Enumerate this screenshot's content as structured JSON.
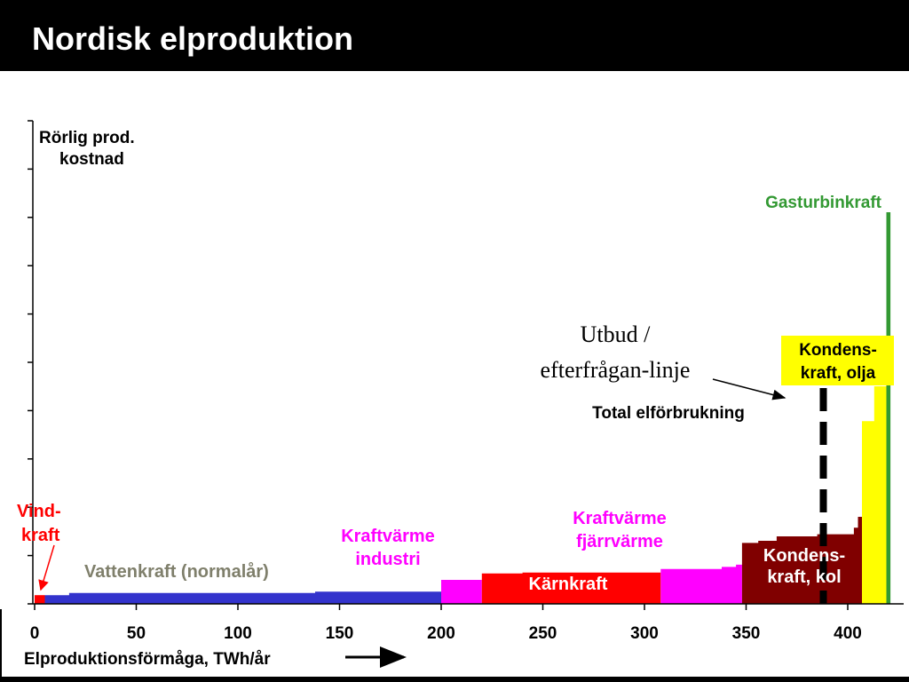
{
  "slide": {
    "title": "Nordisk elproduktion"
  },
  "chart_data": {
    "type": "area",
    "title": "",
    "ylabel": "Rörlig prod. kostnad",
    "xlabel": "Elproduktionsförmåga, TWh/år",
    "xlim": [
      0,
      420
    ],
    "ylim": [
      0,
      10
    ],
    "grid": false,
    "x_ticks": [
      0,
      50,
      100,
      150,
      200,
      250,
      300,
      350,
      400
    ],
    "segments": [
      {
        "name": "Vind-kraft",
        "color": "#ff0000",
        "steps": [
          [
            0,
            0.2
          ],
          [
            5,
            0.2
          ]
        ]
      },
      {
        "name": "Vattenkraft (normalår)",
        "color": "#3333cc",
        "steps": [
          [
            5,
            0.2
          ],
          [
            17,
            0.25
          ],
          [
            100,
            0.25
          ],
          [
            138,
            0.28
          ],
          [
            200,
            0.3
          ]
        ]
      },
      {
        "name": "Kraftvärme industri",
        "color": "#ff00ff",
        "steps": [
          [
            200,
            0.55
          ],
          [
            220,
            0.55
          ]
        ]
      },
      {
        "name": "Kärnkraft",
        "color": "#ff0000",
        "steps": [
          [
            220,
            0.7
          ],
          [
            240,
            0.72
          ],
          [
            275,
            0.72
          ],
          [
            308,
            0.72
          ]
        ]
      },
      {
        "name": "Kraftvärme fjärrvärme",
        "color": "#ff00ff",
        "steps": [
          [
            308,
            0.8
          ],
          [
            325,
            0.8
          ],
          [
            338,
            0.85
          ],
          [
            345,
            0.9
          ],
          [
            348,
            0.9
          ]
        ]
      },
      {
        "name": "Kondens-kraft, kol",
        "color": "#800000",
        "steps": [
          [
            348,
            1.4
          ],
          [
            356,
            1.45
          ],
          [
            365,
            1.55
          ],
          [
            385,
            1.6
          ],
          [
            403,
            1.75
          ],
          [
            405,
            2.0
          ],
          [
            407,
            2.0
          ]
        ]
      },
      {
        "name": "Kondens-kraft, olja",
        "color": "#ffff00",
        "steps": [
          [
            407,
            4.2
          ],
          [
            412,
            4.2
          ],
          [
            413,
            5.0
          ],
          [
            419,
            5.0
          ]
        ]
      },
      {
        "name": "Gasturbinkraft",
        "color": "#339933",
        "steps": [
          [
            419,
            9.0
          ],
          [
            421,
            9.0
          ]
        ]
      }
    ],
    "demand_line": {
      "name": "Total elförbrukning",
      "x": 388,
      "color": "#000000"
    },
    "annotations": [
      {
        "text_lines": [
          "Utbud /",
          "efterfrågan-linje"
        ],
        "arrow_to_x": 388
      }
    ],
    "labels": {
      "y_label_line1": "Rörlig prod.",
      "y_label_line2": "kostnad",
      "wind_line1": "Vind-",
      "wind_line2": "kraft",
      "hydro": "Vattenkraft (normalår)",
      "chp_industry_line1": "Kraftvärme",
      "chp_industry_line2": "industri",
      "chp_district_line1": "Kraftvärme",
      "chp_district_line2": "fjärrvärme",
      "nuclear": "Kärnkraft",
      "coal_line1": "Kondens-",
      "coal_line2": "kraft, kol",
      "oil_line1": "Kondens-",
      "oil_line2": "kraft, olja",
      "gas": "Gasturbinkraft",
      "demand": "Total elförbrukning",
      "supply_demand_line1": "Utbud /",
      "supply_demand_line2": "efterfrågan-linje",
      "xlabel": "Elproduktionsförmåga, TWh/år"
    },
    "label_colors": {
      "wind": "#ff0000",
      "hydro": "#7f7f6b",
      "chp": "#ff00ff",
      "nuclear_text": "#ffffff",
      "coal_text": "#ffffff",
      "gas": "#339933",
      "oil_box": "#ffff00",
      "dark": "#000000"
    }
  }
}
